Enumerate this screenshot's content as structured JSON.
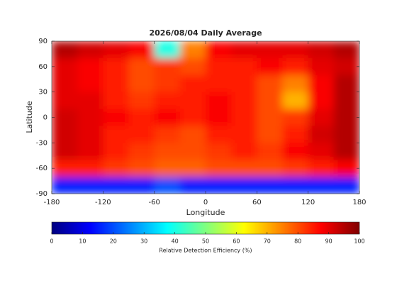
{
  "chart_data": {
    "type": "heatmap",
    "title": "2026/08/04 Daily Average",
    "x_label": "Longitude",
    "y_label": "Latitude",
    "xlim": [
      -180,
      180
    ],
    "ylim": [
      -90,
      90
    ],
    "xticks": [
      -180,
      -120,
      -60,
      0,
      60,
      120,
      180
    ],
    "yticks": [
      90,
      60,
      30,
      0,
      -30,
      -60,
      -90
    ],
    "x_edges": [
      -180,
      -150,
      -120,
      -90,
      -60,
      -30,
      0,
      30,
      60,
      90,
      120,
      150,
      180
    ],
    "y_edges": [
      90,
      70,
      50,
      30,
      10,
      -10,
      -30,
      -50,
      -70,
      -90
    ],
    "values": [
      [
        95,
        92,
        90,
        88,
        40,
        75,
        88,
        90,
        90,
        90,
        92,
        95
      ],
      [
        90,
        88,
        85,
        80,
        82,
        80,
        85,
        85,
        88,
        85,
        90,
        92
      ],
      [
        90,
        88,
        85,
        80,
        82,
        85,
        85,
        85,
        80,
        75,
        88,
        95
      ],
      [
        90,
        90,
        85,
        82,
        85,
        85,
        88,
        85,
        80,
        70,
        88,
        95
      ],
      [
        92,
        90,
        88,
        85,
        88,
        85,
        88,
        85,
        80,
        82,
        90,
        95
      ],
      [
        92,
        90,
        85,
        85,
        82,
        80,
        85,
        85,
        80,
        85,
        92,
        95
      ],
      [
        92,
        90,
        85,
        82,
        80,
        80,
        82,
        85,
        82,
        88,
        90,
        95
      ],
      [
        85,
        85,
        82,
        80,
        78,
        78,
        80,
        80,
        80,
        82,
        85,
        88
      ],
      [
        15,
        15,
        15,
        15,
        20,
        15,
        15,
        15,
        15,
        15,
        15,
        15
      ]
    ],
    "colorbar_label": "Relative Detection Efficiency (%)",
    "clim": [
      0,
      100
    ],
    "cticks": [
      0,
      10,
      20,
      30,
      40,
      50,
      60,
      70,
      80,
      90,
      100
    ],
    "colormap": "jet"
  }
}
